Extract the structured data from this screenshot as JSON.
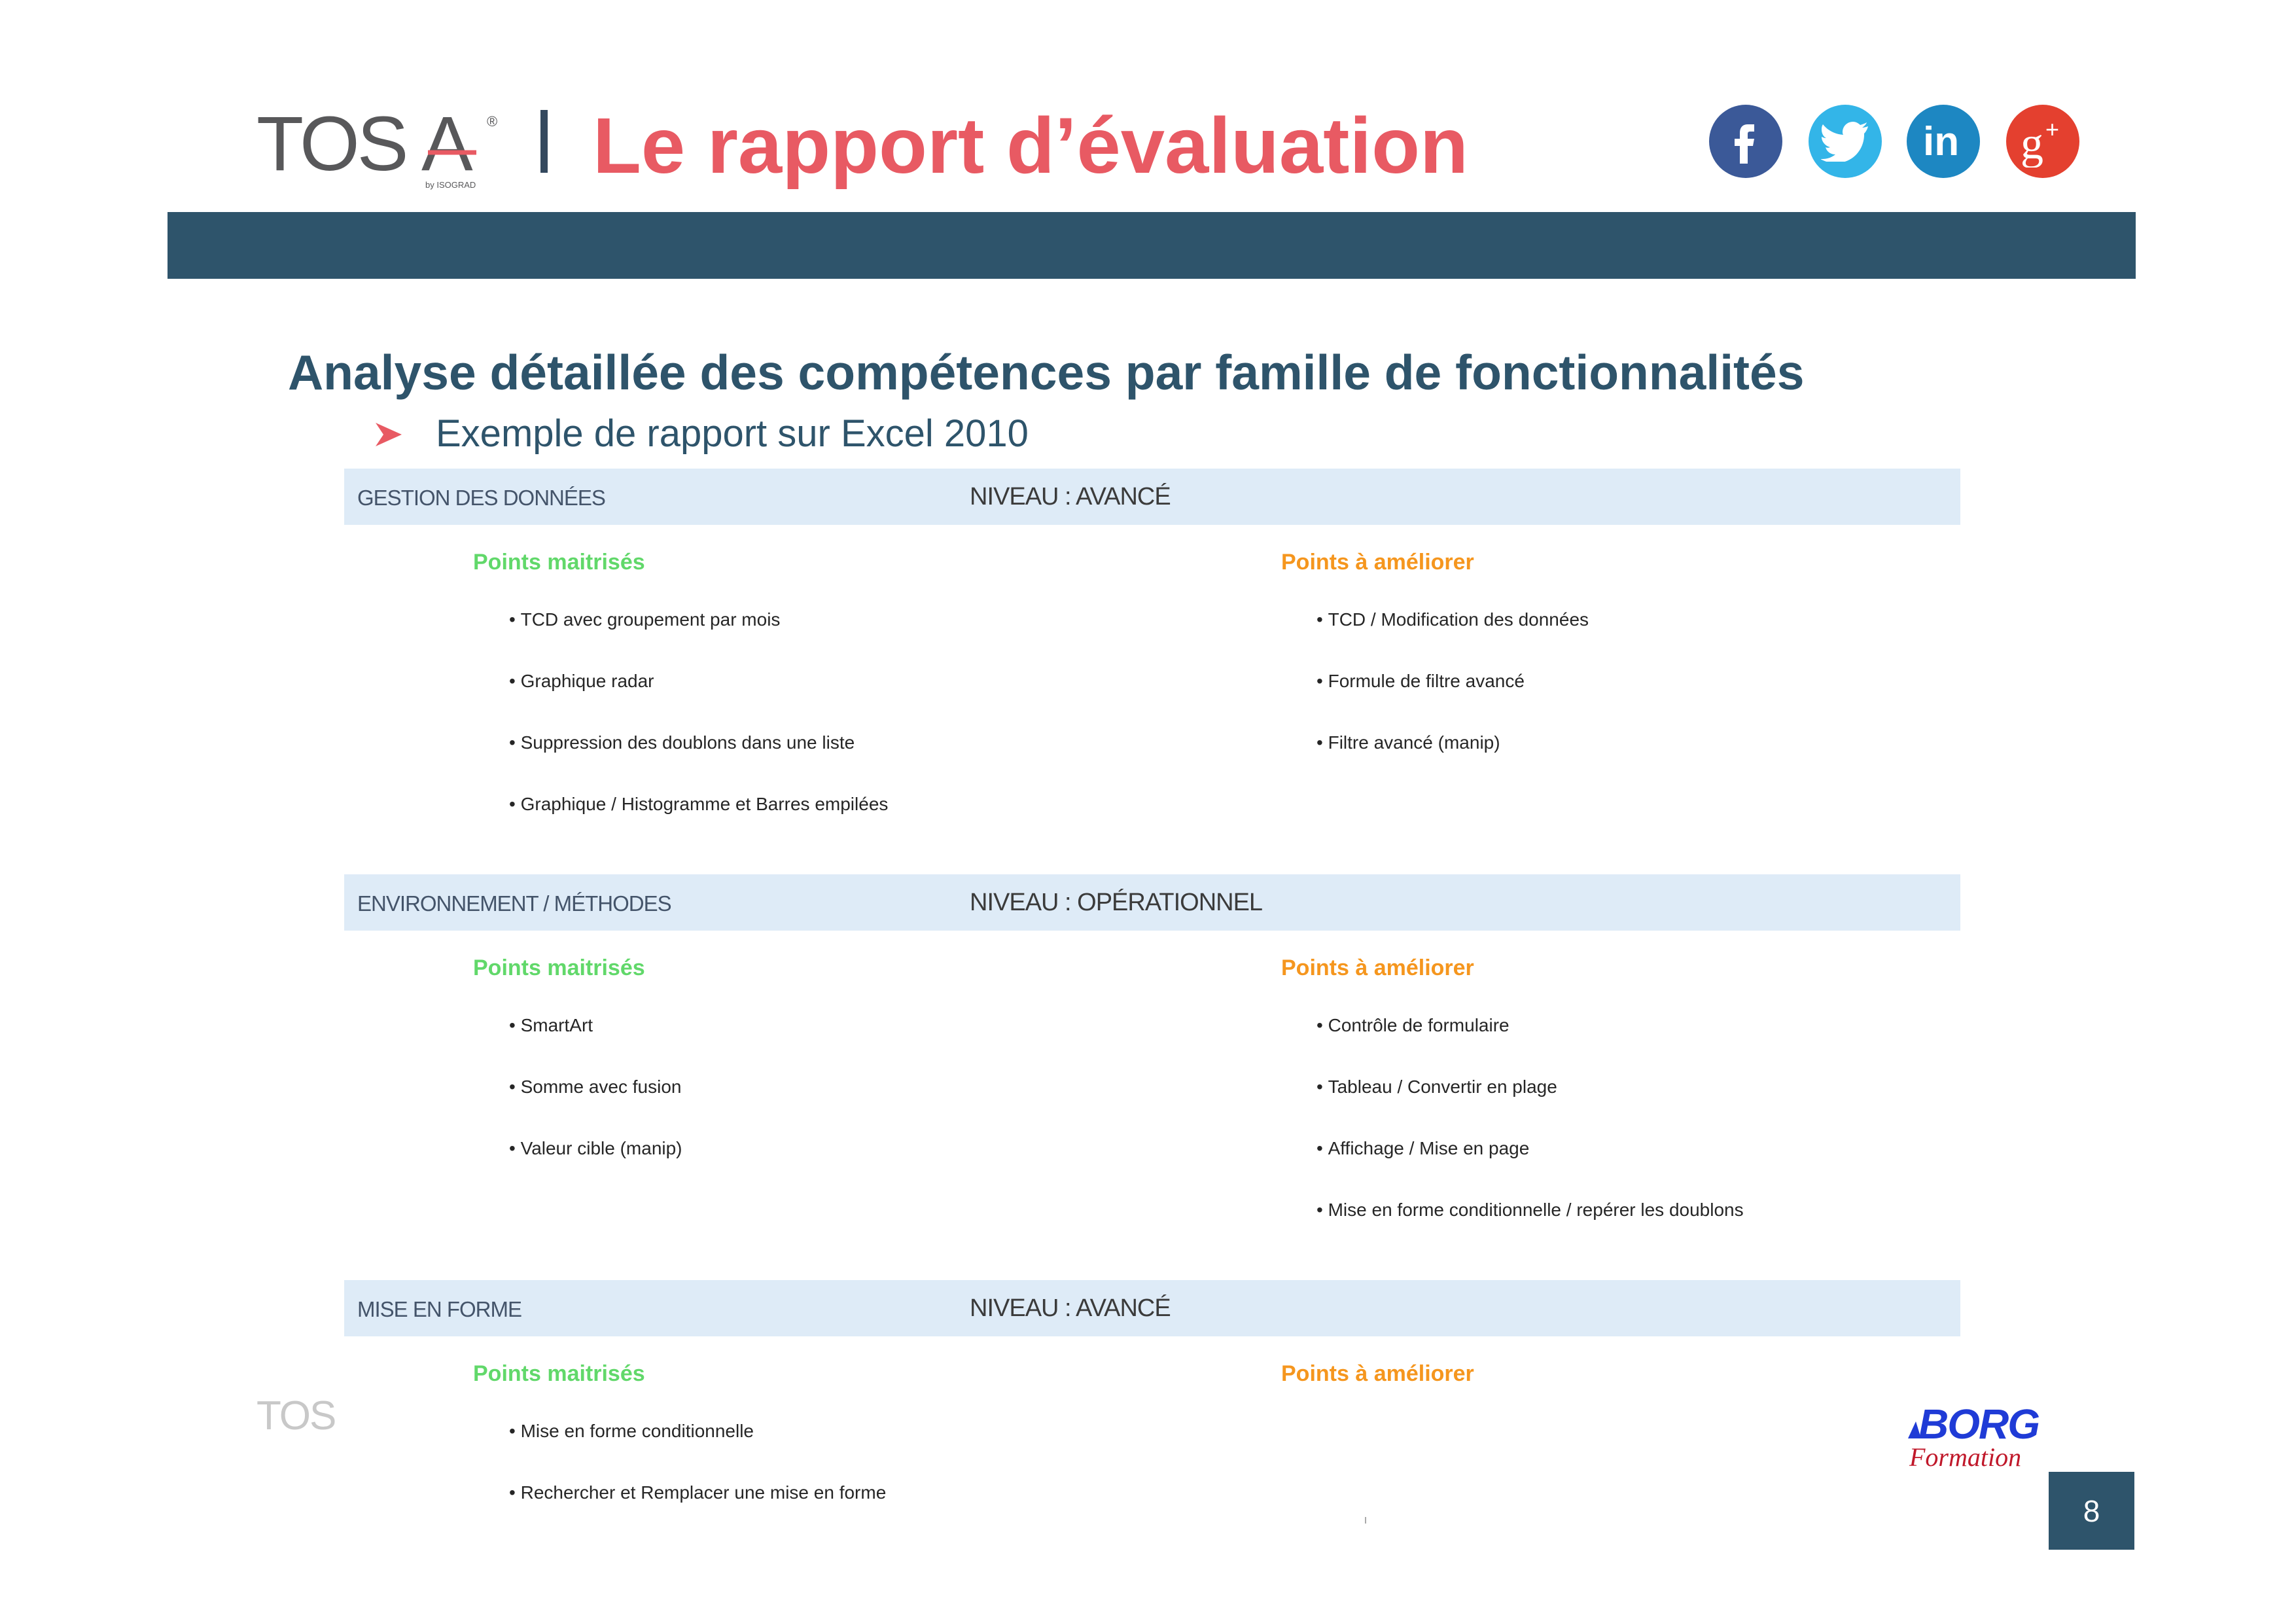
{
  "header": {
    "logo_text": "TOSA",
    "logo_subtext": "by ISOGRAD",
    "title": "Le rapport d’évaluation"
  },
  "social": [
    {
      "icon": "facebook-icon",
      "color": "#3b5998"
    },
    {
      "icon": "twitter-icon",
      "color": "#33b5e8"
    },
    {
      "icon": "linkedin-icon",
      "color": "#1d87c2"
    },
    {
      "icon": "google-plus-icon",
      "color": "#e4402f"
    }
  ],
  "colors": {
    "title_red": "#e85a63",
    "band_blue": "#2e546b",
    "row_band": "#deebf7",
    "mastered_green": "#61d86a",
    "improve_orange": "#f5961e"
  },
  "main": {
    "section_title": "Analyse détaillée des compétences par famille de fonctionnalités",
    "bullet": "Exemple de rapport sur Excel 2010"
  },
  "sections": [
    {
      "name": "GESTION DES DONNÉES",
      "level": "NIVEAU : AVANCÉ",
      "mastered_title": "Points maitrisés",
      "improve_title": "Points à améliorer",
      "mastered": [
        "TCD avec groupement par mois",
        "Graphique radar",
        "Suppression des doublons dans une liste",
        "Graphique / Histogramme et Barres empilées"
      ],
      "improve": [
        "TCD / Modification des données",
        "Formule de filtre avancé",
        "Filtre avancé (manip)"
      ]
    },
    {
      "name": "ENVIRONNEMENT / MÉTHODES",
      "level": "NIVEAU : OPÉRATIONNEL",
      "mastered_title": "Points maitrisés",
      "improve_title": "Points à améliorer",
      "mastered": [
        "SmartArt",
        "Somme avec fusion",
        "Valeur cible (manip)"
      ],
      "improve": [
        "Contrôle de formulaire",
        "Tableau / Convertir en plage",
        "Affichage / Mise en page",
        "Mise en forme conditionnelle / repérer les doublons"
      ]
    },
    {
      "name": "MISE EN FORME",
      "level": "NIVEAU : AVANCÉ",
      "mastered_title": "Points maitrisés",
      "improve_title": "Points à améliorer",
      "mastered": [
        "Mise en forme conditionnelle",
        "Rechercher et Remplacer une mise en forme"
      ],
      "improve": []
    }
  ],
  "footer": {
    "watermark_text": "TOS",
    "borg_logo_text": "BORG",
    "borg_logo_subtext": "Formation",
    "page_number": "8"
  }
}
